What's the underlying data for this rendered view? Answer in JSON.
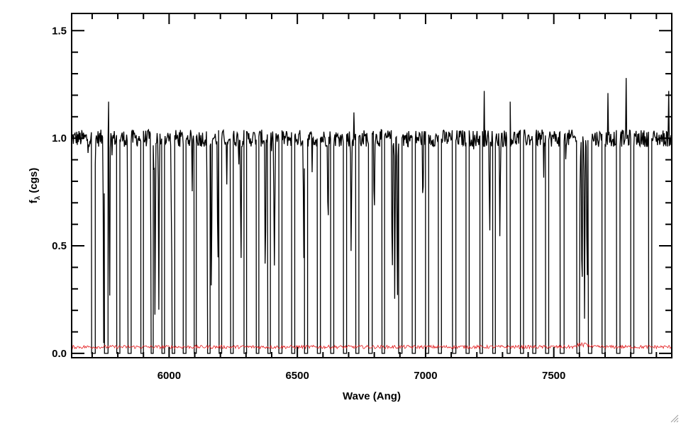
{
  "chart_data": {
    "type": "line",
    "title": "",
    "xlabel": "Wave (Ang)",
    "ylabel": "f",
    "ylabel_subscript": "λ",
    "ylabel_unit": "(cgs)",
    "xlim": [
      5620,
      7960
    ],
    "ylim": [
      -0.02,
      1.58
    ],
    "xticks": [
      6000,
      6500,
      7000,
      7500
    ],
    "xtick_labels": [
      "6000",
      "6500",
      "7000",
      "7500"
    ],
    "yticks": [
      0.0,
      0.5,
      1.0,
      1.5
    ],
    "ytick_labels": [
      "0.0",
      "0.5",
      "1.0",
      "1.5"
    ],
    "grid": false,
    "series": [
      {
        "role": "flux",
        "color": "#000000",
        "continuum": 1.0,
        "noise": 0.04,
        "segments": [
          [
            5620,
            5698
          ],
          [
            5712,
            5748
          ],
          [
            5762,
            5796
          ],
          [
            5808,
            5840
          ],
          [
            5852,
            5890
          ],
          [
            5900,
            5930
          ],
          [
            5938,
            5972
          ],
          [
            5982,
            6012
          ],
          [
            6022,
            6055
          ],
          [
            6066,
            6098
          ],
          [
            6106,
            6150
          ],
          [
            6160,
            6195
          ],
          [
            6205,
            6240
          ],
          [
            6250,
            6292
          ],
          [
            6302,
            6340
          ],
          [
            6350,
            6385
          ],
          [
            6395,
            6428
          ],
          [
            6440,
            6478
          ],
          [
            6490,
            6528
          ],
          [
            6540,
            6578
          ],
          [
            6590,
            6630
          ],
          [
            6642,
            6680
          ],
          [
            6692,
            6728
          ],
          [
            6740,
            6778
          ],
          [
            6792,
            6830
          ],
          [
            6840,
            6895
          ],
          [
            6908,
            6948
          ],
          [
            6960,
            7000
          ],
          [
            7012,
            7050
          ],
          [
            7062,
            7105
          ],
          [
            7118,
            7158
          ],
          [
            7170,
            7212
          ],
          [
            7222,
            7262
          ],
          [
            7272,
            7318
          ],
          [
            7330,
            7370
          ],
          [
            7382,
            7418
          ],
          [
            7430,
            7468
          ],
          [
            7480,
            7525
          ],
          [
            7540,
            7590
          ],
          [
            7600,
            7635
          ],
          [
            7648,
            7688
          ],
          [
            7700,
            7745
          ],
          [
            7758,
            7800
          ],
          [
            7812,
            7870
          ],
          [
            7882,
            7960
          ]
        ],
        "spikes": [
          {
            "x": 5765,
            "y": 1.17
          },
          {
            "x": 6390,
            "y": 1.13
          },
          {
            "x": 7228,
            "y": 1.22
          },
          {
            "x": 7330,
            "y": 1.17
          },
          {
            "x": 7712,
            "y": 1.21
          },
          {
            "x": 7782,
            "y": 1.28
          },
          {
            "x": 7948,
            "y": 1.22
          },
          {
            "x": 6152,
            "y": 1.12
          },
          {
            "x": 6720,
            "y": 1.12
          }
        ],
        "absorption_lines": [
          {
            "x": 5745,
            "depth": 0.95
          },
          {
            "x": 5768,
            "depth": 0.9
          },
          {
            "x": 5840,
            "depth": 0.85
          },
          {
            "x": 5930,
            "depth": 0.9
          },
          {
            "x": 5945,
            "depth": 0.95
          },
          {
            "x": 5960,
            "depth": 0.8
          },
          {
            "x": 6010,
            "depth": 0.7
          },
          {
            "x": 6150,
            "depth": 0.9
          },
          {
            "x": 6165,
            "depth": 0.85
          },
          {
            "x": 6190,
            "depth": 0.75
          },
          {
            "x": 6280,
            "depth": 0.6
          },
          {
            "x": 6375,
            "depth": 0.8
          },
          {
            "x": 6410,
            "depth": 0.7
          },
          {
            "x": 6525,
            "depth": 0.6
          },
          {
            "x": 6620,
            "depth": 0.5
          },
          {
            "x": 6710,
            "depth": 0.6
          },
          {
            "x": 6800,
            "depth": 0.4
          },
          {
            "x": 6870,
            "depth": 0.8
          },
          {
            "x": 6880,
            "depth": 0.85
          },
          {
            "x": 6890,
            "depth": 0.9
          },
          {
            "x": 7110,
            "depth": 0.6
          },
          {
            "x": 7250,
            "depth": 0.55
          },
          {
            "x": 7290,
            "depth": 0.5
          },
          {
            "x": 7600,
            "depth": 0.95
          },
          {
            "x": 7610,
            "depth": 0.95
          },
          {
            "x": 7620,
            "depth": 0.9
          },
          {
            "x": 7630,
            "depth": 0.85
          }
        ]
      },
      {
        "role": "error",
        "color": "#e41a1c",
        "level": 0.03,
        "noise": 0.008
      }
    ]
  }
}
